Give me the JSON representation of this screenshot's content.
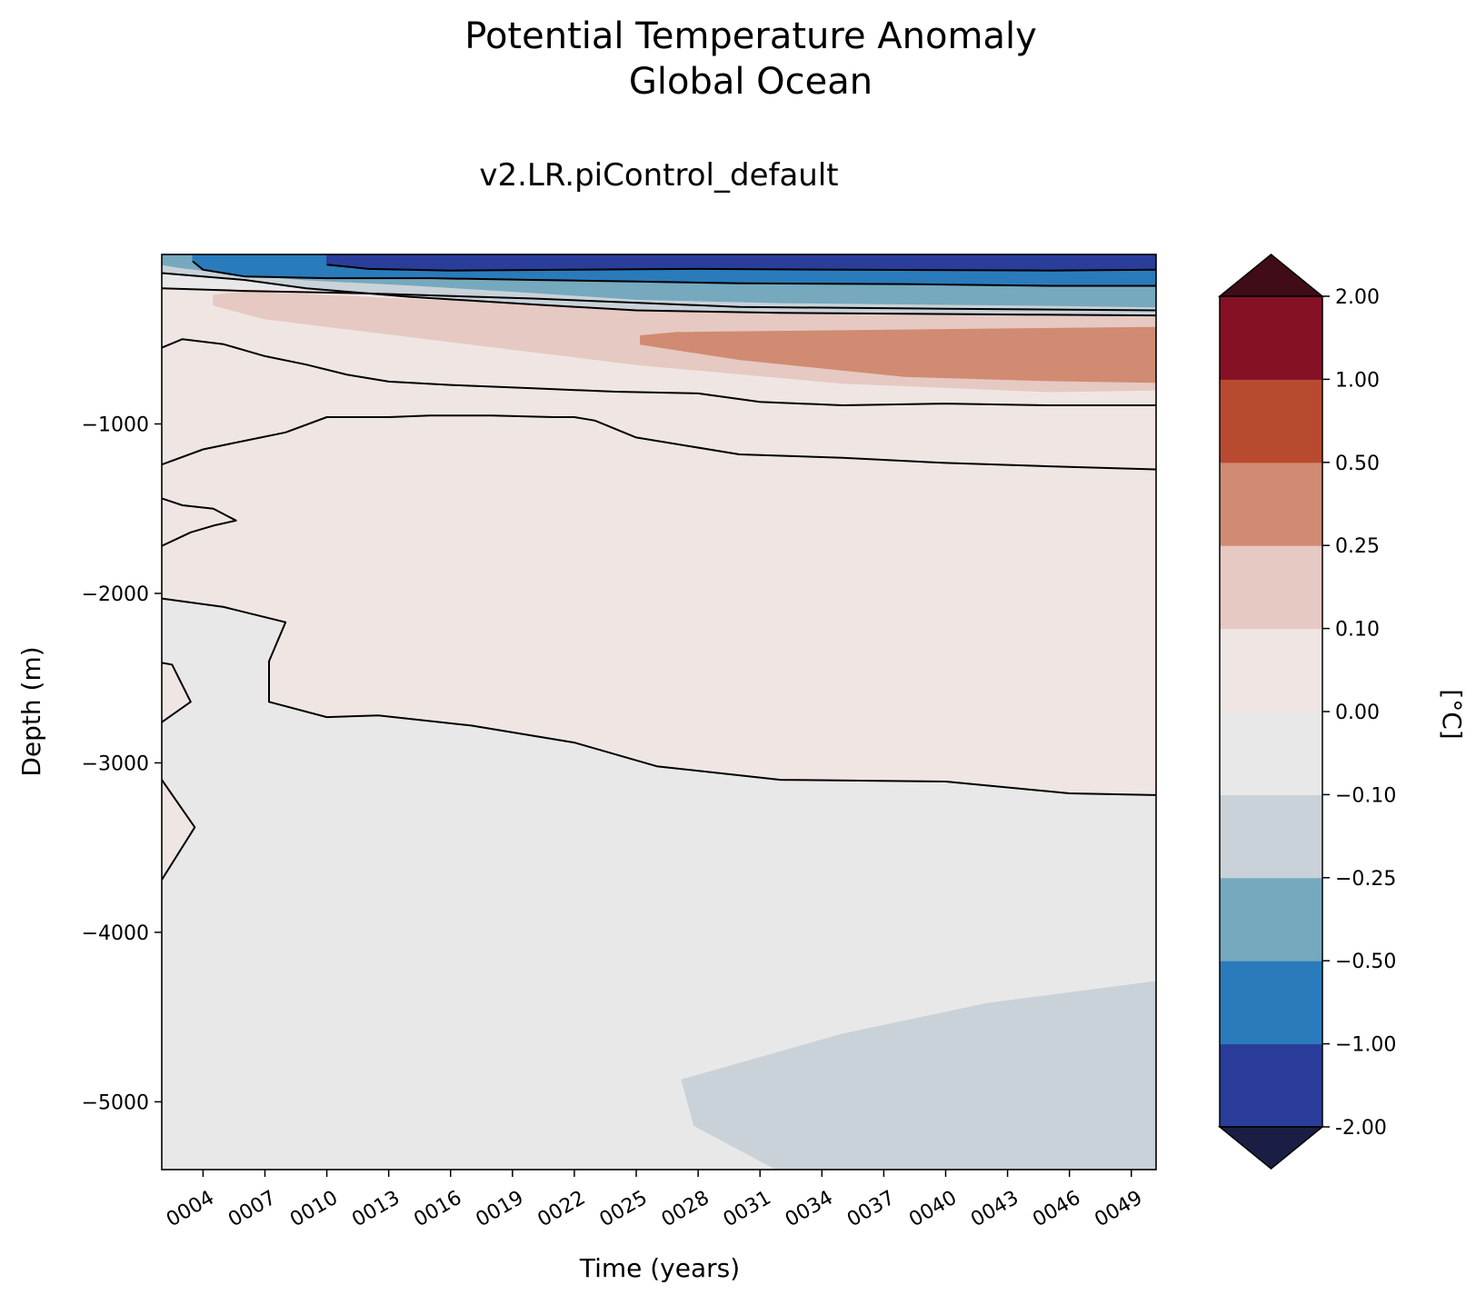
{
  "chart_data": {
    "type": "contour",
    "title_lines": [
      "Potential Temperature Anomaly",
      "Global Ocean"
    ],
    "subtitle": "v2.LR.piControl_default",
    "xlabel": "Time (years)",
    "ylabel": "Depth (m)",
    "x_tick_labels": [
      "0004",
      "0007",
      "0010",
      "0013",
      "0016",
      "0019",
      "0022",
      "0025",
      "0028",
      "0031",
      "0034",
      "0037",
      "0040",
      "0043",
      "0046",
      "0049"
    ],
    "x_tick_years": [
      4,
      7,
      10,
      13,
      16,
      19,
      22,
      25,
      28,
      31,
      34,
      37,
      40,
      43,
      46,
      49
    ],
    "xlim": [
      2,
      50.2
    ],
    "y_ticks": [
      -1000,
      -2000,
      -3000,
      -4000,
      -5000
    ],
    "y_tick_labels": [
      "−1000",
      "−2000",
      "−3000",
      "−4000",
      "−5000"
    ],
    "ylim": [
      -5400,
      0
    ],
    "colorbar": {
      "label": "[°C]",
      "extend": "both",
      "levels": [
        -2.0,
        -1.0,
        -0.5,
        -0.25,
        -0.1,
        0.0,
        0.1,
        0.25,
        0.5,
        1.0,
        2.0
      ],
      "level_labels": [
        "-2.00",
        "−1.00",
        "−0.50",
        "−0.25",
        "−0.10",
        "0.00",
        "0.10",
        "0.25",
        "0.50",
        "1.00",
        "2.00"
      ],
      "colors": [
        "#2a3d9a",
        "#2a7bbb",
        "#76a9be",
        "#c9d2d8",
        "#e9e8e9",
        "#efe6e4",
        "#e6c9c2",
        "#d08b72",
        "#b84a30",
        "#861126"
      ],
      "under_color": "#1b1e44",
      "over_color": "#3f0c17"
    },
    "background_color": "#e9e8e9",
    "regions": [
      {
        "anomaly_class": "0.00 to 0.10",
        "color": "#efe6e4",
        "points": [
          [
            2,
            -200
          ],
          [
            50.2,
            -200
          ],
          [
            50.2,
            -1268
          ],
          [
            45,
            -1250
          ],
          [
            30,
            -1180
          ],
          [
            25,
            -1080
          ],
          [
            22,
            -960
          ],
          [
            15,
            -950
          ],
          [
            10,
            -960
          ],
          [
            8,
            -1050
          ],
          [
            6,
            -1100
          ],
          [
            4,
            -1150
          ],
          [
            2,
            -1240
          ]
        ]
      },
      {
        "anomaly_class": "0.00 to 0.10",
        "color": "#efe6e4",
        "points": [
          [
            2,
            -1700
          ],
          [
            2,
            -2030
          ],
          [
            5,
            -2080
          ],
          [
            8,
            -2170
          ],
          [
            7.2,
            -2400
          ],
          [
            7.2,
            -2640
          ],
          [
            10,
            -2730
          ],
          [
            12.5,
            -2720
          ],
          [
            17,
            -2780
          ],
          [
            22,
            -2880
          ],
          [
            26,
            -3020
          ],
          [
            32,
            -3100
          ],
          [
            40,
            -3110
          ],
          [
            46,
            -3180
          ],
          [
            50.2,
            -3190
          ],
          [
            50.2,
            -1268
          ],
          [
            45,
            -1250
          ],
          [
            30,
            -1180
          ],
          [
            25,
            -1080
          ],
          [
            22,
            -960
          ],
          [
            15,
            -950
          ],
          [
            10,
            -960
          ],
          [
            8,
            -1050
          ],
          [
            6,
            -1100
          ],
          [
            4,
            -1150
          ],
          [
            2,
            -1240
          ]
        ]
      },
      {
        "anomaly_class": "0.00 to 0.10",
        "color": "#efe6e4",
        "points": [
          [
            2,
            -2410
          ],
          [
            2.5,
            -2420
          ],
          [
            3.4,
            -2640
          ],
          [
            2,
            -2760
          ]
        ]
      },
      {
        "anomaly_class": "0.00 to 0.10",
        "color": "#efe6e4",
        "points": [
          [
            2,
            -3100
          ],
          [
            3.6,
            -3380
          ],
          [
            2,
            -3690
          ]
        ]
      },
      {
        "anomaly_class": "0.10 to 0.25",
        "color": "#e6c9c2",
        "points": [
          [
            4.5,
            -240
          ],
          [
            6,
            -220
          ],
          [
            15,
            -270
          ],
          [
            25,
            -300
          ],
          [
            35,
            -320
          ],
          [
            45,
            -330
          ],
          [
            50.2,
            -330
          ],
          [
            50.2,
            -800
          ],
          [
            45,
            -810
          ],
          [
            35,
            -760
          ],
          [
            25,
            -650
          ],
          [
            15,
            -500
          ],
          [
            7,
            -380
          ],
          [
            4.5,
            -300
          ]
        ]
      },
      {
        "anomaly_class": "0.25 to 0.50",
        "color": "#d08b72",
        "points": [
          [
            25.2,
            -480
          ],
          [
            27,
            -460
          ],
          [
            35,
            -450
          ],
          [
            42,
            -440
          ],
          [
            50.2,
            -430
          ],
          [
            50.2,
            -755
          ],
          [
            45,
            -745
          ],
          [
            38,
            -720
          ],
          [
            30,
            -620
          ],
          [
            25.2,
            -530
          ]
        ]
      },
      {
        "anomaly_class": "-0.25 to -0.10",
        "color": "#c9d2d8",
        "points": [
          [
            2,
            0
          ],
          [
            50.2,
            0
          ],
          [
            50.2,
            -360
          ],
          [
            44,
            -355
          ],
          [
            32,
            -345
          ],
          [
            25,
            -330
          ],
          [
            20,
            -295
          ],
          [
            14,
            -250
          ],
          [
            9,
            -200
          ],
          [
            6,
            -150
          ],
          [
            3,
            -120
          ],
          [
            2,
            -110
          ]
        ]
      },
      {
        "anomaly_class": "-0.50 to -0.25",
        "color": "#76a9be",
        "points": [
          [
            2,
            0
          ],
          [
            50.2,
            0
          ],
          [
            50.2,
            -310
          ],
          [
            44,
            -300
          ],
          [
            32,
            -285
          ],
          [
            25,
            -265
          ],
          [
            20,
            -225
          ],
          [
            14,
            -180
          ],
          [
            9,
            -150
          ],
          [
            6,
            -120
          ],
          [
            3,
            -80
          ],
          [
            2,
            -60
          ]
        ]
      },
      {
        "anomaly_class": "-1.00 to -0.50",
        "color": "#2a7bbb",
        "points": [
          [
            3.5,
            0
          ],
          [
            50.2,
            0
          ],
          [
            50.2,
            -185
          ],
          [
            45,
            -185
          ],
          [
            38,
            -175
          ],
          [
            30,
            -170
          ],
          [
            25,
            -160
          ],
          [
            20,
            -150
          ],
          [
            15,
            -140
          ],
          [
            10,
            -140
          ],
          [
            6,
            -130
          ],
          [
            4,
            -90
          ],
          [
            3.5,
            -40
          ]
        ]
      },
      {
        "anomaly_class": "-2.00 to -1.00",
        "color": "#2a3d9a",
        "points": [
          [
            10,
            0
          ],
          [
            50.2,
            0
          ],
          [
            50.2,
            -90
          ],
          [
            45,
            -95
          ],
          [
            35,
            -90
          ],
          [
            28,
            -85
          ],
          [
            22,
            -90
          ],
          [
            16,
            -95
          ],
          [
            12,
            -85
          ],
          [
            10,
            -60
          ]
        ]
      },
      {
        "anomaly_class": "-0.25 to -0.10",
        "color": "#c9d2d8",
        "points": [
          [
            27.2,
            -4870
          ],
          [
            35,
            -4600
          ],
          [
            42,
            -4420
          ],
          [
            50.2,
            -4290
          ],
          [
            50.2,
            -5400
          ],
          [
            31.8,
            -5400
          ],
          [
            27.8,
            -5140
          ]
        ]
      }
    ],
    "contour_lines": [
      [
        [
          2,
          -110
        ],
        [
          3,
          -120
        ],
        [
          6,
          -150
        ],
        [
          9,
          -200
        ],
        [
          14,
          -250
        ],
        [
          20,
          -295
        ],
        [
          25,
          -330
        ],
        [
          32,
          -345
        ],
        [
          44,
          -355
        ],
        [
          50.2,
          -360
        ]
      ],
      [
        [
          2,
          -200
        ],
        [
          6,
          -215
        ],
        [
          12,
          -230
        ],
        [
          20,
          -260
        ],
        [
          25,
          -285
        ],
        [
          30,
          -310
        ],
        [
          40,
          -320
        ],
        [
          50.2,
          -330
        ]
      ],
      [
        [
          2,
          -550
        ],
        [
          3,
          -500
        ],
        [
          5,
          -530
        ],
        [
          7,
          -600
        ],
        [
          9,
          -650
        ],
        [
          11,
          -710
        ],
        [
          13,
          -750
        ],
        [
          16,
          -770
        ],
        [
          20,
          -790
        ],
        [
          24,
          -810
        ],
        [
          28,
          -820
        ],
        [
          31,
          -870
        ],
        [
          35,
          -890
        ],
        [
          40,
          -880
        ],
        [
          45,
          -890
        ],
        [
          50.2,
          -890
        ]
      ],
      [
        [
          2,
          -1240
        ],
        [
          4,
          -1150
        ],
        [
          6,
          -1100
        ],
        [
          8,
          -1050
        ],
        [
          10,
          -960
        ],
        [
          13,
          -960
        ],
        [
          15,
          -950
        ],
        [
          18,
          -950
        ],
        [
          21,
          -960
        ],
        [
          22,
          -960
        ],
        [
          23,
          -980
        ],
        [
          25,
          -1080
        ],
        [
          30,
          -1180
        ],
        [
          35,
          -1200
        ],
        [
          40,
          -1230
        ],
        [
          45,
          -1250
        ],
        [
          50.2,
          -1268
        ]
      ],
      [
        [
          2,
          -1440
        ],
        [
          3,
          -1480
        ],
        [
          4.5,
          -1500
        ],
        [
          5.6,
          -1570
        ],
        [
          4.5,
          -1600
        ],
        [
          3.4,
          -1640
        ],
        [
          2,
          -1720
        ]
      ],
      [
        [
          2,
          -2030
        ],
        [
          5,
          -2080
        ],
        [
          8,
          -2170
        ],
        [
          7.2,
          -2400
        ],
        [
          7.2,
          -2640
        ],
        [
          10,
          -2730
        ],
        [
          12.5,
          -2720
        ],
        [
          17,
          -2780
        ],
        [
          22,
          -2880
        ],
        [
          26,
          -3020
        ],
        [
          32,
          -3100
        ],
        [
          40,
          -3110
        ],
        [
          46,
          -3180
        ],
        [
          50.2,
          -3190
        ]
      ],
      [
        [
          2,
          -2410
        ],
        [
          2.5,
          -2420
        ],
        [
          3.4,
          -2640
        ],
        [
          2,
          -2760
        ]
      ],
      [
        [
          2,
          -3100
        ],
        [
          3.6,
          -3380
        ],
        [
          2,
          -3690
        ]
      ],
      [
        [
          3.5,
          -40
        ],
        [
          4,
          -90
        ],
        [
          6,
          -130
        ],
        [
          10,
          -140
        ],
        [
          15,
          -140
        ],
        [
          20,
          -150
        ],
        [
          25,
          -160
        ],
        [
          30,
          -170
        ],
        [
          38,
          -175
        ],
        [
          45,
          -185
        ],
        [
          50.2,
          -185
        ]
      ],
      [
        [
          10,
          -60
        ],
        [
          12,
          -85
        ],
        [
          16,
          -95
        ],
        [
          22,
          -90
        ],
        [
          28,
          -85
        ],
        [
          35,
          -90
        ],
        [
          45,
          -95
        ],
        [
          50.2,
          -90
        ]
      ]
    ]
  }
}
